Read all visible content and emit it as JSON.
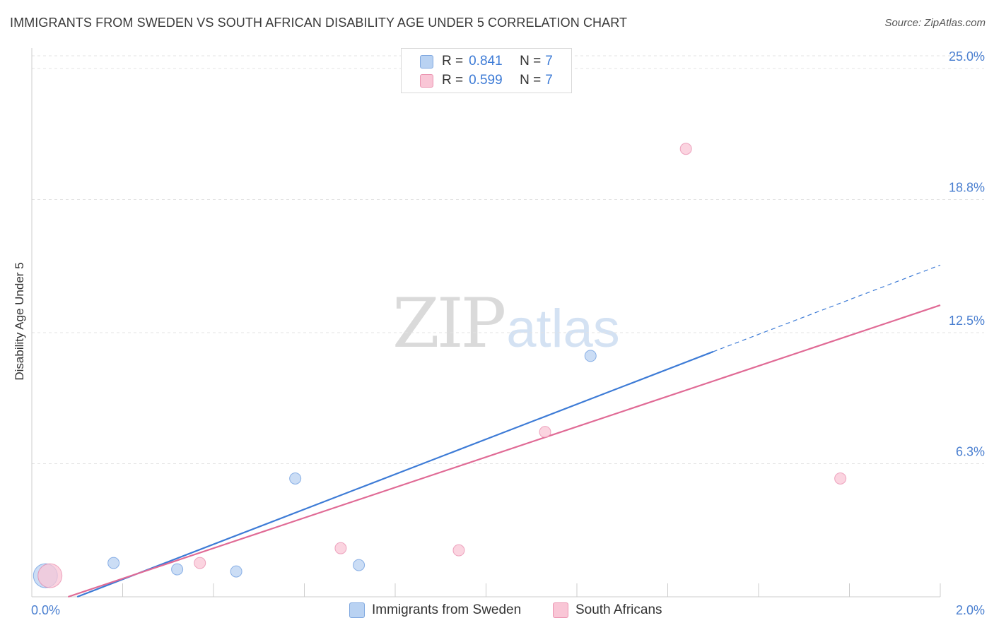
{
  "title": "IMMIGRANTS FROM SWEDEN VS SOUTH AFRICAN DISABILITY AGE UNDER 5 CORRELATION CHART",
  "source": "Source: ZipAtlas.com",
  "watermark": {
    "zip": "ZIP",
    "atlas": "atlas"
  },
  "legend": {
    "rows": [
      {
        "r_label": "R =",
        "r_value": "0.841",
        "n_label": "N =",
        "n_value": "7",
        "color": "#a9c8f0"
      },
      {
        "r_label": "R =",
        "r_value": "0.599",
        "n_label": "N =",
        "n_value": "7",
        "color": "#f7b8cb"
      }
    ]
  },
  "chart_data": {
    "type": "scatter",
    "title": "IMMIGRANTS FROM SWEDEN VS SOUTH AFRICAN DISABILITY AGE UNDER 5 CORRELATION CHART",
    "xlabel": "",
    "ylabel": "Disability Age Under 5",
    "xlim": [
      0.0,
      2.0
    ],
    "ylim": [
      0.0,
      25.0
    ],
    "x_tick_labels": [
      "0.0%",
      "2.0%"
    ],
    "y_ticks": [
      6.3,
      12.5,
      18.8,
      25.0
    ],
    "y_tick_labels": [
      "6.3%",
      "12.5%",
      "18.8%",
      "25.0%"
    ],
    "grid": true,
    "series": [
      {
        "name": "Immigrants from Sweden",
        "color": "#3d7bd6",
        "fill": "#b9d2f2",
        "points": [
          {
            "x": 0.03,
            "y": 1.0,
            "size": "large"
          },
          {
            "x": 0.18,
            "y": 1.6
          },
          {
            "x": 0.32,
            "y": 1.3
          },
          {
            "x": 0.45,
            "y": 1.2
          },
          {
            "x": 0.58,
            "y": 5.6
          },
          {
            "x": 0.72,
            "y": 1.5
          },
          {
            "x": 1.23,
            "y": 11.4
          }
        ],
        "trend": {
          "x0": 0.1,
          "y0": 0.0,
          "x1": 1.5,
          "y1": 11.6,
          "dashed_to_x": 2.0,
          "dashed_to_y": 15.7
        }
      },
      {
        "name": "South Africans",
        "color": "#e06a95",
        "fill": "#f9c6d6",
        "points": [
          {
            "x": 0.04,
            "y": 1.0,
            "size": "large"
          },
          {
            "x": 0.37,
            "y": 1.6
          },
          {
            "x": 0.68,
            "y": 2.3
          },
          {
            "x": 0.94,
            "y": 2.2
          },
          {
            "x": 1.13,
            "y": 7.8
          },
          {
            "x": 1.44,
            "y": 21.2
          },
          {
            "x": 1.78,
            "y": 5.6
          }
        ],
        "trend": {
          "x0": 0.08,
          "y0": 0.0,
          "x1": 2.0,
          "y1": 13.8
        }
      }
    ]
  }
}
